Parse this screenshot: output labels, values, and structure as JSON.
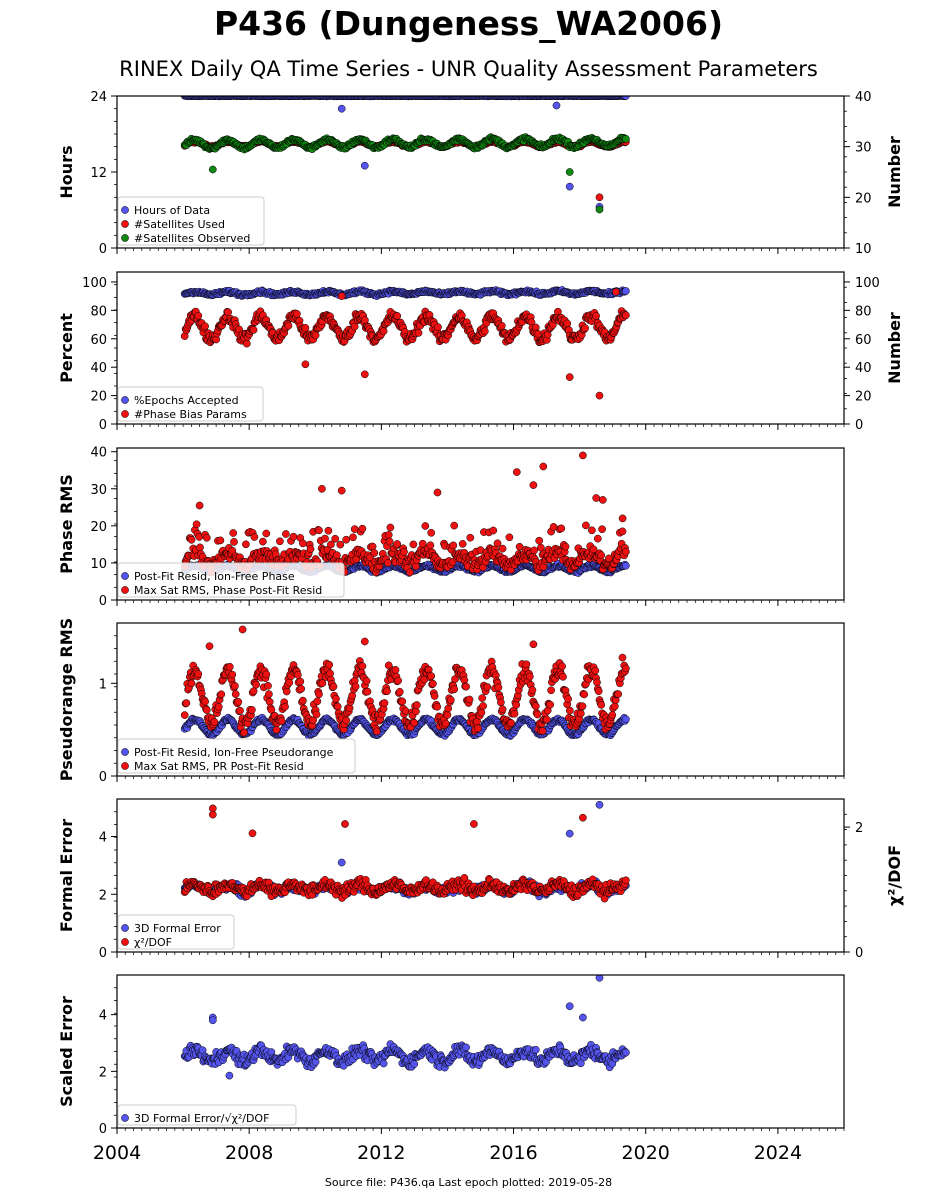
{
  "title": "P436 (Dungeness_WA2006)",
  "subtitle": "RINEX Daily QA Time Series - UNR Quality Assessment Parameters",
  "footer": "Source file: P436.qa Last epoch plotted: 2019-05-28",
  "colors": {
    "blue": "#5555ee",
    "red": "#ee1111",
    "green": "#118811"
  },
  "chart_data": [
    {
      "type": "scatter",
      "name": "panel-hours",
      "ylabel": "Hours",
      "ylim": [
        0,
        24
      ],
      "yticks": [
        "0",
        "12",
        "24"
      ],
      "ylabel_right": "Number",
      "ylim_right": [
        10,
        40
      ],
      "yticks_right": [
        "10",
        "20",
        "30",
        "40"
      ],
      "legend": [
        "Hours of Data",
        "#Satellites Used",
        "#Satellites Observed"
      ],
      "series": [
        {
          "name": "Hours of Data",
          "axis": "left",
          "color": "#5555ee",
          "base": 24,
          "amp": 0,
          "noise": 0.05,
          "outliers": [
            [
              2010.8,
              22
            ],
            [
              2011.5,
              13
            ],
            [
              2017.3,
              22.5
            ],
            [
              2017.7,
              9.7
            ],
            [
              2018.6,
              6.5
            ]
          ]
        },
        {
          "name": "#Satellites Used",
          "axis": "right",
          "color": "#ee1111",
          "base": 30.5,
          "amp": 0.5,
          "noise": 0.2,
          "outliers": [
            [
              2009.8,
              30
            ],
            [
              2018.6,
              20
            ]
          ]
        },
        {
          "name": "#Satellites Observed",
          "axis": "right",
          "color": "#118811",
          "base": 30.5,
          "amp": 0.8,
          "noise": 0.35,
          "trend": 0.12,
          "outliers": [
            [
              2006.9,
              25.5
            ],
            [
              2017.7,
              25
            ],
            [
              2018.6,
              17.6
            ]
          ]
        }
      ]
    },
    {
      "type": "scatter",
      "name": "panel-percent",
      "ylabel": "Percent",
      "ylim": [
        0,
        107
      ],
      "yticks": [
        "0",
        "20",
        "40",
        "60",
        "80",
        "100"
      ],
      "ylabel_right": "Number",
      "ylim_right": [
        0,
        107
      ],
      "yticks_right": [
        "0",
        "20",
        "40",
        "60",
        "80",
        "100"
      ],
      "legend": [
        "%Epochs Accepted",
        "#Phase Bias Params"
      ],
      "series": [
        {
          "name": "%Epochs Accepted",
          "axis": "left",
          "color": "#5555ee",
          "base": 92,
          "amp": 1,
          "noise": 1,
          "trend": 0.2,
          "outliers": []
        },
        {
          "name": "#Phase Bias Params",
          "axis": "right",
          "color": "#ee1111",
          "base": 68,
          "amp": 8,
          "noise": 4,
          "outliers": [
            [
              2009.7,
              42
            ],
            [
              2011.5,
              35
            ],
            [
              2017.7,
              33
            ],
            [
              2018.6,
              20
            ],
            [
              2010.8,
              90
            ],
            [
              2019.1,
              93
            ]
          ]
        }
      ]
    },
    {
      "type": "scatter",
      "name": "panel-phase-rms",
      "ylabel": "Phase RMS",
      "ylim": [
        0,
        41
      ],
      "yticks": [
        "0",
        "10",
        "20",
        "30",
        "40"
      ],
      "legend": [
        "Post-Fit Resid, Ion-Free Phase",
        "Max Sat RMS, Phase Post-Fit Resid"
      ],
      "series": [
        {
          "name": "Post-Fit Resid, Ion-Free Phase",
          "axis": "left",
          "color": "#5555ee",
          "base": 8.5,
          "amp": 0.8,
          "noise": 0.4,
          "outliers": []
        },
        {
          "name": "Max Sat RMS, Phase Post-Fit Resid",
          "axis": "left",
          "color": "#ee1111",
          "base": 11,
          "amp": 1.5,
          "noise": 1.8,
          "spread": 8,
          "outliers": [
            [
              2010.2,
              30
            ],
            [
              2010.8,
              29.5
            ],
            [
              2016.1,
              34.5
            ],
            [
              2016.6,
              31
            ],
            [
              2016.9,
              36
            ],
            [
              2018.1,
              39
            ],
            [
              2018.5,
              27.5
            ],
            [
              2018.7,
              27
            ],
            [
              2019.3,
              22
            ],
            [
              2006.5,
              25.5
            ],
            [
              2013.7,
              29
            ]
          ]
        }
      ]
    },
    {
      "type": "scatter",
      "name": "panel-pseudorange-rms",
      "ylabel": "Pseudorange RMS",
      "ylim": [
        0,
        1.65
      ],
      "yticks": [
        "0",
        "1"
      ],
      "legend": [
        "Post-Fit Resid, Ion-Free Pseudorange",
        "Max Sat RMS, PR Post-Fit Resid"
      ],
      "series": [
        {
          "name": "Post-Fit Resid, Ion-Free Pseudorange",
          "axis": "left",
          "color": "#5555ee",
          "base": 0.53,
          "amp": 0.08,
          "noise": 0.02,
          "outliers": []
        },
        {
          "name": "Max Sat RMS, PR Post-Fit Resid",
          "axis": "left",
          "color": "#ee1111",
          "base": 0.85,
          "amp": 0.3,
          "noise": 0.1,
          "outliers": [
            [
              2007.8,
              1.58
            ],
            [
              2011.5,
              1.45
            ],
            [
              2006.8,
              1.4
            ],
            [
              2016.6,
              1.42
            ]
          ]
        }
      ]
    },
    {
      "type": "scatter",
      "name": "panel-formal-error",
      "ylabel": "Formal Error",
      "ylim": [
        0,
        5.3
      ],
      "yticks": [
        "0",
        "2",
        "4"
      ],
      "ylabel_right": "χ²/DOF",
      "ylim_right": [
        0,
        2.45
      ],
      "yticks_right": [
        "0",
        "2"
      ],
      "legend": [
        "3D Formal Error",
        "χ²/DOF"
      ],
      "series": [
        {
          "name": "3D Formal Error",
          "axis": "left",
          "color": "#5555ee",
          "base": 2.2,
          "amp": 0.1,
          "noise": 0.15,
          "outliers": [
            [
              2017.7,
              4.1
            ],
            [
              2018.6,
              5.1
            ],
            [
              2010.8,
              3.1
            ]
          ]
        },
        {
          "name": "χ²/DOF",
          "axis": "right",
          "color": "#ee1111",
          "base": 1.03,
          "amp": 0.06,
          "noise": 0.09,
          "outliers": [
            [
              2006.9,
              2.3
            ],
            [
              2006.9,
              2.2
            ],
            [
              2010.9,
              2.05
            ],
            [
              2014.8,
              2.05
            ],
            [
              2018.1,
              2.15
            ],
            [
              2008.1,
              1.9
            ]
          ]
        }
      ]
    },
    {
      "type": "scatter",
      "name": "panel-scaled-error",
      "ylabel": "Scaled Error",
      "ylim": [
        0,
        5.4
      ],
      "yticks": [
        "0",
        "2",
        "4"
      ],
      "legend": [
        "3D Formal Error/√χ²/DOF"
      ],
      "series": [
        {
          "name": "3D Formal Error/√χ²/DOF",
          "axis": "left",
          "color": "#5555ee",
          "base": 2.55,
          "amp": 0.2,
          "noise": 0.22,
          "outliers": [
            [
              2006.9,
              3.9
            ],
            [
              2006.9,
              3.8
            ],
            [
              2017.7,
              4.3
            ],
            [
              2018.1,
              3.9
            ],
            [
              2018.6,
              5.3
            ],
            [
              2007.4,
              1.85
            ]
          ]
        }
      ]
    }
  ],
  "xaxis": {
    "ticks": [
      "2004",
      "2008",
      "2012",
      "2016",
      "2020",
      "2024"
    ],
    "xlim": [
      2004,
      2026
    ],
    "data_range": [
      2006.05,
      2019.4
    ]
  }
}
